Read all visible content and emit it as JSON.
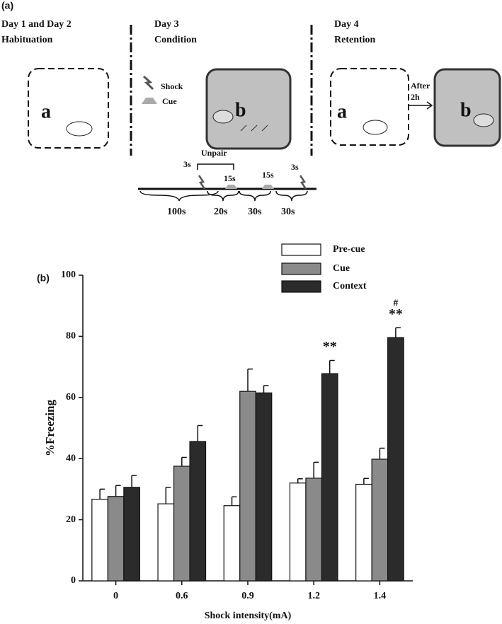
{
  "panel_a": {
    "label": "(a)",
    "day12": {
      "title": "Day 1 and Day 2",
      "subtitle": "Habituation",
      "box": "a"
    },
    "day3": {
      "title": "Day 3",
      "subtitle": "Condition",
      "shock": "Shock",
      "cue": "Cue",
      "box": "b"
    },
    "day4": {
      "title": "Day 4",
      "subtitle": "Retention",
      "box_1": "a",
      "after": "After",
      "delay": "2h",
      "box_2": "b"
    },
    "timeline": {
      "unpair": "Unpair",
      "above": [
        "3s",
        "15s",
        "15s",
        "3s"
      ],
      "below": [
        "100s",
        "20s",
        "30s",
        "30s"
      ]
    }
  },
  "chart_data": {
    "type": "bar",
    "panel_label": "(b)",
    "x_label": "Shock intensity(mA)",
    "y_label": "%Freezing",
    "categories": [
      "0",
      "0.6",
      "0.9",
      "1.2",
      "1.4"
    ],
    "series": [
      {
        "name": "Pre-cue",
        "color": "#ffffff",
        "values": [
          26.7,
          25.2,
          24.6,
          32,
          31.6
        ],
        "errors": [
          3.3,
          5.4,
          2.9,
          1.4,
          1.9
        ]
      },
      {
        "name": "Cue",
        "color": "#8a8a8a",
        "values": [
          27.6,
          37.5,
          62,
          33.6,
          39.8
        ],
        "errors": [
          3.6,
          2.9,
          7.3,
          5.2,
          3.6
        ]
      },
      {
        "name": "Context",
        "color": "#2b2b2b",
        "values": [
          30.6,
          45.6,
          61.5,
          67.8,
          79.6
        ],
        "errors": [
          3.9,
          5.2,
          2.4,
          4.3,
          3.2
        ]
      }
    ],
    "ylim": [
      0,
      100
    ],
    "yticks": [
      0,
      20,
      40,
      60,
      80,
      100
    ],
    "grid": false,
    "legend": "top-right",
    "annotations": [
      {
        "text": "**",
        "category": "1.2",
        "series": "Context"
      },
      {
        "text": "**",
        "category": "1.4",
        "series": "Context"
      },
      {
        "text": "#",
        "category": "1.4",
        "series": "Context"
      }
    ]
  }
}
